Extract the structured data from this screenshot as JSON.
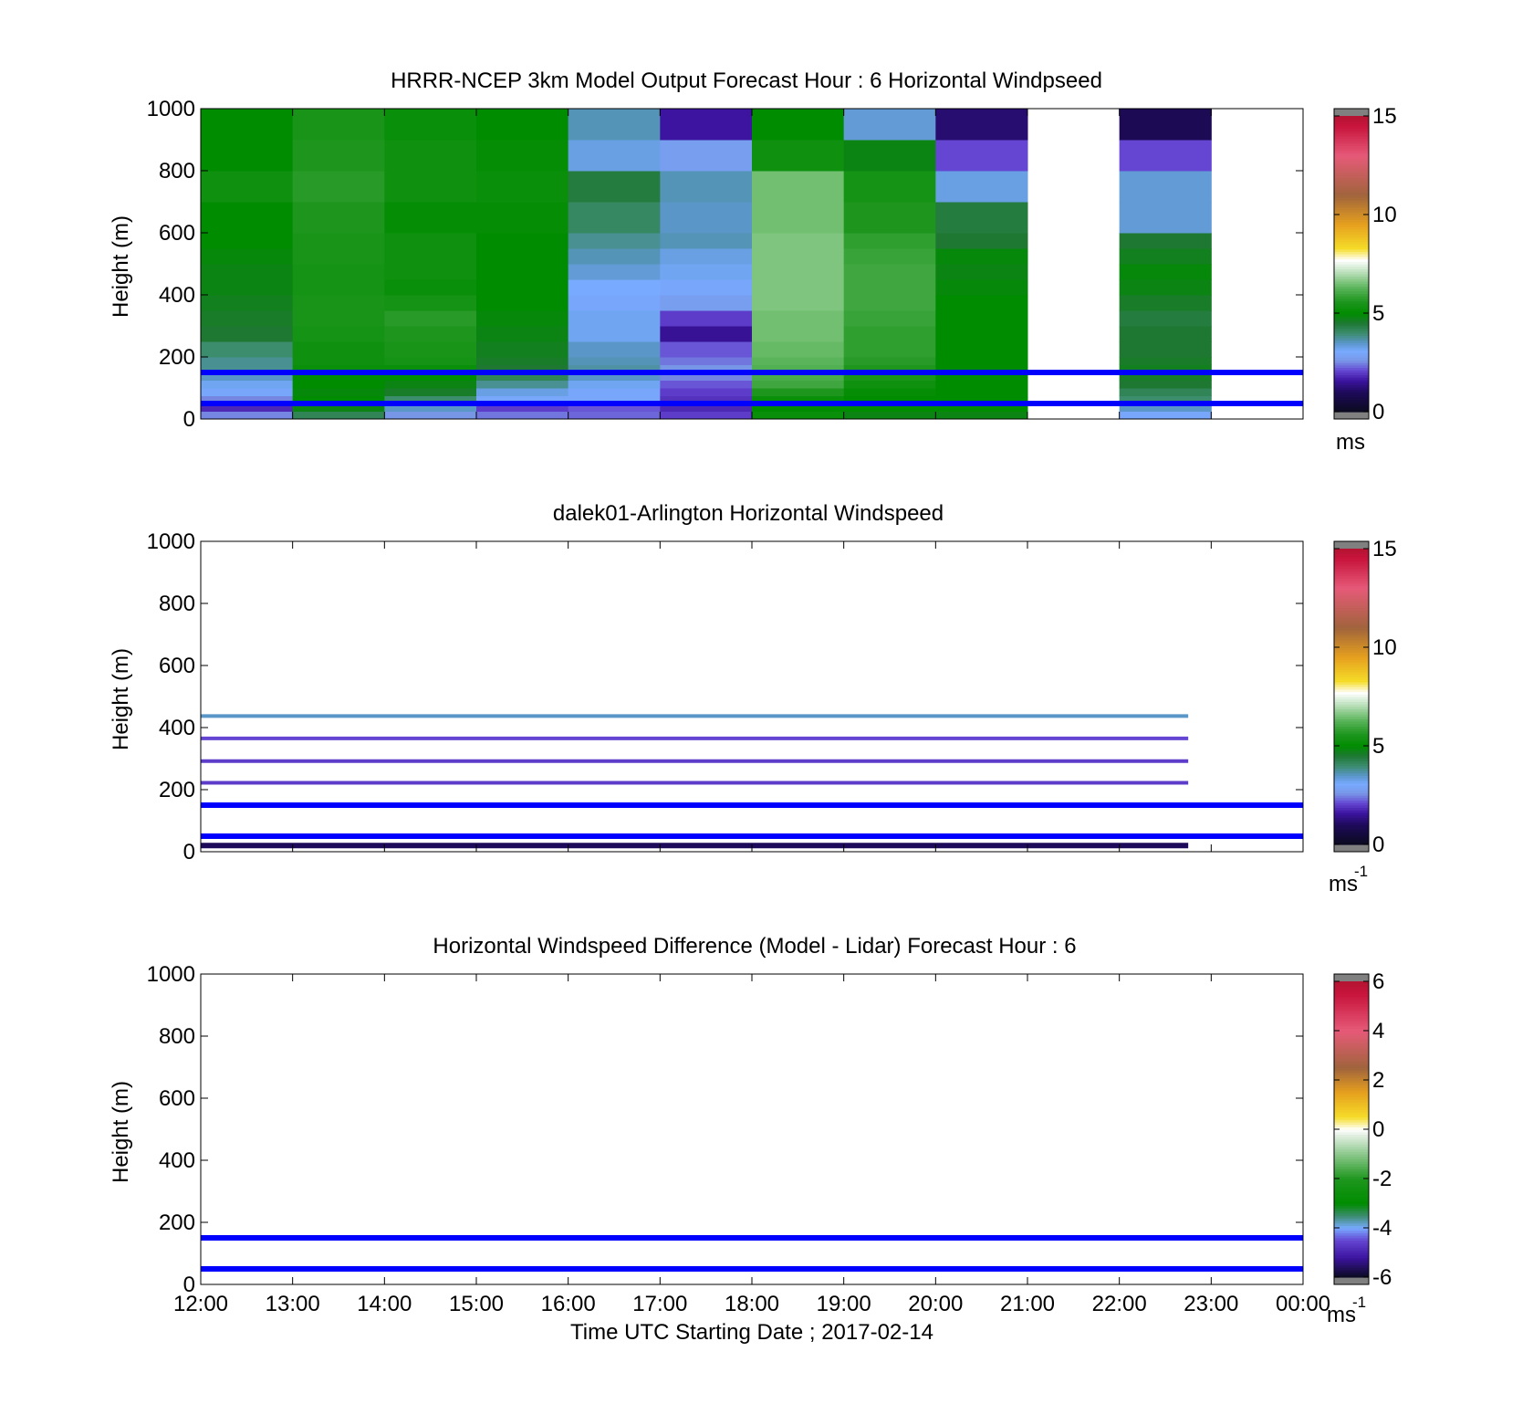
{
  "figure": {
    "xlabel": "Time UTC  Starting Date ; 2017-02-14",
    "xticks": [
      "12:00",
      "13:00",
      "14:00",
      "15:00",
      "16:00",
      "17:00",
      "18:00",
      "19:00",
      "20:00",
      "21:00",
      "22:00",
      "23:00",
      "00:00"
    ]
  },
  "ylabel": "Height (m)",
  "yticks": [
    "0",
    "200",
    "400",
    "600",
    "800",
    "1000"
  ],
  "colors": {
    "reference_lines": "#0000ff",
    "axes": "#000000",
    "background": "#ffffff"
  },
  "chart_data": [
    {
      "type": "heatmap",
      "title": "HRRR-NCEP 3km Model Output   Forecast Hour : 6 Horizontal Windpseed",
      "ylabel": "Height (m)",
      "xlim": [
        0,
        12
      ],
      "ylim": [
        0,
        1000
      ],
      "x_hours": [
        0,
        1,
        2,
        3,
        4,
        5,
        6,
        7,
        8,
        9,
        10,
        11
      ],
      "height_edges": [
        0,
        25,
        50,
        75,
        100,
        125,
        150,
        175,
        200,
        250,
        300,
        350,
        400,
        450,
        500,
        550,
        600,
        700,
        800,
        900,
        1000
      ],
      "windspeed_ms": [
        [
          2.5,
          4.2,
          2.6,
          2.4,
          2.3,
          2.0,
          5.2,
          4.8,
          4.8,
          null,
          3.0,
          null
        ],
        [
          1.8,
          4.8,
          3.5,
          2.0,
          2.2,
          1.8,
          5.0,
          5.0,
          5.0,
          null,
          3.5,
          null
        ],
        [
          2.5,
          5.0,
          4.0,
          3.0,
          3.0,
          1.9,
          5.2,
          5.0,
          5.0,
          null,
          4.0,
          null
        ],
        [
          3.0,
          4.9,
          4.6,
          3.3,
          3.0,
          2.0,
          5.6,
          5.1,
          5.0,
          null,
          4.2,
          null
        ],
        [
          3.2,
          5.0,
          4.8,
          3.8,
          3.2,
          2.2,
          6.0,
          5.3,
          5.0,
          null,
          4.5,
          null
        ],
        [
          3.5,
          5.0,
          5.0,
          4.2,
          3.5,
          2.5,
          6.1,
          5.5,
          5.0,
          null,
          4.6,
          null
        ],
        [
          3.8,
          5.2,
          5.2,
          4.5,
          3.7,
          2.6,
          6.2,
          5.6,
          5.0,
          null,
          4.7,
          null
        ],
        [
          3.8,
          5.3,
          5.4,
          4.6,
          3.6,
          2.4,
          6.3,
          5.7,
          5.0,
          null,
          4.6,
          null
        ],
        [
          4.0,
          5.3,
          5.5,
          4.7,
          3.5,
          2.2,
          6.4,
          5.8,
          5.0,
          null,
          4.5,
          null
        ],
        [
          4.5,
          5.4,
          5.6,
          4.8,
          3.2,
          1.5,
          6.5,
          5.8,
          5.0,
          null,
          4.5,
          null
        ],
        [
          4.6,
          5.5,
          5.7,
          4.9,
          3.2,
          2.0,
          6.5,
          5.9,
          5.0,
          null,
          4.4,
          null
        ],
        [
          4.7,
          5.5,
          5.4,
          5.0,
          3.0,
          2.8,
          6.6,
          6.0,
          5.0,
          null,
          4.6,
          null
        ],
        [
          4.8,
          5.4,
          5.2,
          5.0,
          3.1,
          3.0,
          6.6,
          6.0,
          4.9,
          null,
          4.8,
          null
        ],
        [
          4.8,
          5.4,
          5.3,
          5.0,
          3.4,
          3.2,
          6.6,
          6.0,
          4.8,
          null,
          4.9,
          null
        ],
        [
          4.9,
          5.5,
          5.3,
          5.0,
          3.6,
          3.3,
          6.6,
          5.9,
          4.9,
          null,
          4.7,
          null
        ],
        [
          5.0,
          5.5,
          5.3,
          5.0,
          3.8,
          3.6,
          6.6,
          5.8,
          4.5,
          null,
          4.5,
          null
        ],
        [
          5.0,
          5.6,
          5.1,
          5.1,
          4.1,
          3.5,
          6.5,
          5.6,
          4.4,
          null,
          3.4,
          null
        ],
        [
          5.3,
          5.7,
          5.3,
          5.2,
          4.4,
          3.6,
          6.5,
          5.4,
          3.3,
          null,
          3.4,
          null
        ],
        [
          5.0,
          5.6,
          5.3,
          5.1,
          3.3,
          2.8,
          5.3,
          4.8,
          2.1,
          null,
          2.1,
          null
        ],
        [
          5.0,
          5.5,
          5.2,
          5.0,
          3.6,
          1.6,
          5.0,
          3.4,
          1.2,
          null,
          0.9,
          null
        ],
        [
          5.0,
          5.5,
          5.3,
          5.0,
          3.8,
          2.2,
          4.0,
          2.8,
          2.0,
          null,
          0.8,
          null
        ]
      ],
      "reference_lines_m": [
        50,
        150
      ],
      "colorbar": {
        "min": 0,
        "max": 15,
        "ticks": [
          "0",
          "5",
          "10",
          "15"
        ],
        "unit": "ms"
      }
    },
    {
      "type": "heatmap",
      "title": "dalek01-Arlington  Horizontal Windspeed",
      "ylabel": "Height (m)",
      "xlim": [
        0,
        12
      ],
      "ylim": [
        0,
        1000
      ],
      "lidar_gates": [
        {
          "height_m": 20,
          "x_start": 0,
          "x_end": 10.75,
          "windspeed_ms": 1.0
        },
        {
          "height_m": 222,
          "x_start": 0,
          "x_end": 10.75,
          "windspeed_ms": 2.0
        },
        {
          "height_m": 292,
          "x_start": 0,
          "x_end": 10.75,
          "windspeed_ms": 2.0
        },
        {
          "height_m": 365,
          "x_start": 0,
          "x_end": 10.75,
          "windspeed_ms": 2.1
        },
        {
          "height_m": 437,
          "x_start": 0,
          "x_end": 10.75,
          "windspeed_ms": 3.5
        }
      ],
      "reference_lines_m": [
        50,
        150
      ],
      "colorbar": {
        "min": 0,
        "max": 15,
        "ticks": [
          "0",
          "5",
          "10",
          "15"
        ],
        "unit": "ms",
        "unit_exp": "-1"
      }
    },
    {
      "type": "heatmap",
      "title": "Horizontal Windspeed Difference (Model - Lidar) Forecast Hour : 6",
      "ylabel": "Height (m)",
      "xlim": [
        0,
        12
      ],
      "ylim": [
        0,
        1000
      ],
      "reference_lines_m": [
        50,
        150
      ],
      "colorbar": {
        "min": -6,
        "max": 6,
        "ticks": [
          "-6",
          "-4",
          "-2",
          "0",
          "2",
          "4",
          "6"
        ],
        "unit": "ms",
        "unit_exp": "-1"
      }
    }
  ]
}
